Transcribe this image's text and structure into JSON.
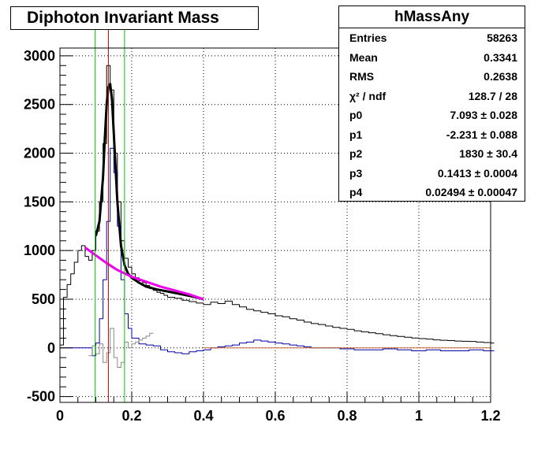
{
  "chart_data": {
    "type": "line",
    "title": "Diphoton Invariant Mass",
    "xlabel": "",
    "ylabel": "",
    "xlim": [
      0,
      1.2
    ],
    "ylim": [
      -560,
      3080
    ],
    "grid": true,
    "x_ticks": [
      0,
      0.2,
      0.4,
      0.6,
      0.8,
      1,
      1.2
    ],
    "x_tick_labels": [
      "0",
      "0.2",
      "0.4",
      "0.6",
      "0.8",
      "1",
      "1.2"
    ],
    "y_ticks": [
      -500,
      0,
      500,
      1000,
      1500,
      2000,
      2500,
      3000
    ],
    "y_tick_labels": [
      "-500",
      "0",
      "500",
      "1000",
      "1500",
      "2000",
      "2500",
      "3000"
    ],
    "vertical_lines": [
      {
        "x": 0.098,
        "color": "#00cc00"
      },
      {
        "x": 0.135,
        "color": "#cc0000"
      },
      {
        "x": 0.18,
        "color": "#00cc00"
      }
    ],
    "series": [
      {
        "color": "#000000",
        "style": "step",
        "x": [
          0.0,
          0.01,
          0.02,
          0.03,
          0.04,
          0.05,
          0.06,
          0.07,
          0.08,
          0.09,
          0.1,
          0.11,
          0.12,
          0.13,
          0.14,
          0.15,
          0.16,
          0.17,
          0.18,
          0.19,
          0.2,
          0.21,
          0.22,
          0.23,
          0.24,
          0.25,
          0.26,
          0.27,
          0.28,
          0.29,
          0.3,
          0.32,
          0.34,
          0.36,
          0.38,
          0.4,
          0.42,
          0.44,
          0.46,
          0.48,
          0.5,
          0.52,
          0.54,
          0.56,
          0.58,
          0.6,
          0.62,
          0.64,
          0.66,
          0.68,
          0.7,
          0.72,
          0.74,
          0.76,
          0.78,
          0.8,
          0.82,
          0.84,
          0.86,
          0.88,
          0.9,
          0.92,
          0.94,
          0.96,
          0.98,
          1.0,
          1.02,
          1.04,
          1.06,
          1.08,
          1.1,
          1.12,
          1.14,
          1.16,
          1.18,
          1.2
        ],
        "values": [
          30,
          520,
          650,
          760,
          880,
          1000,
          1050,
          940,
          900,
          1000,
          1200,
          1500,
          2100,
          2900,
          2650,
          2000,
          1500,
          1100,
          920,
          830,
          760,
          720,
          690,
          670,
          640,
          610,
          590,
          570,
          560,
          540,
          520,
          510,
          490,
          475,
          460,
          445,
          470,
          455,
          480,
          445,
          420,
          395,
          380,
          365,
          350,
          330,
          320,
          300,
          285,
          265,
          250,
          240,
          225,
          210,
          200,
          190,
          175,
          165,
          155,
          145,
          135,
          125,
          118,
          110,
          102,
          95,
          90,
          82,
          78,
          75,
          70,
          68,
          66,
          60,
          55,
          50
        ]
      },
      {
        "color": "#0000aa",
        "style": "step",
        "x": [
          0.0,
          0.02,
          0.04,
          0.06,
          0.08,
          0.09,
          0.1,
          0.11,
          0.12,
          0.13,
          0.14,
          0.15,
          0.16,
          0.17,
          0.18,
          0.19,
          0.2,
          0.22,
          0.24,
          0.26,
          0.28,
          0.3,
          0.32,
          0.34,
          0.36,
          0.38,
          0.4,
          0.42,
          0.44,
          0.46,
          0.48,
          0.5,
          0.52,
          0.54,
          0.56,
          0.58,
          0.6,
          0.62,
          0.64,
          0.66,
          0.68,
          0.7,
          0.74,
          0.78,
          0.82,
          0.86,
          0.9,
          0.94,
          0.98,
          1.02,
          1.06,
          1.1,
          1.14,
          1.18,
          1.2
        ],
        "values": [
          0,
          0,
          0,
          0,
          0,
          -80,
          50,
          300,
          700,
          1300,
          2050,
          1800,
          1250,
          700,
          350,
          200,
          100,
          40,
          30,
          20,
          -20,
          -40,
          -50,
          -60,
          -40,
          -30,
          -20,
          0,
          10,
          20,
          30,
          50,
          60,
          80,
          70,
          60,
          50,
          40,
          30,
          20,
          10,
          0,
          0,
          -10,
          -20,
          -20,
          -10,
          -20,
          -30,
          -20,
          -30,
          -30,
          -20,
          -30,
          -30
        ]
      },
      {
        "color": "#888888",
        "style": "step",
        "x": [
          0.08,
          0.09,
          0.1,
          0.11,
          0.12,
          0.13,
          0.14,
          0.15,
          0.16,
          0.17,
          0.18,
          0.19,
          0.2,
          0.21,
          0.22,
          0.23,
          0.24,
          0.25
        ],
        "values": [
          -80,
          20,
          -60,
          40,
          -150,
          -50,
          200,
          -100,
          -200,
          -150,
          60,
          0,
          40,
          60,
          80,
          100,
          120,
          150
        ]
      },
      {
        "color": "#000000",
        "style": "fit",
        "x": [
          0.1,
          0.11,
          0.12,
          0.125,
          0.13,
          0.135,
          0.14,
          0.145,
          0.15,
          0.155,
          0.16,
          0.17,
          0.18,
          0.19,
          0.2,
          0.22,
          0.24,
          0.27,
          0.3,
          0.34,
          0.38,
          0.4
        ],
        "values": [
          1150,
          1300,
          1750,
          2150,
          2500,
          2680,
          2710,
          2550,
          2200,
          1850,
          1500,
          1050,
          850,
          760,
          720,
          670,
          630,
          600,
          580,
          550,
          520,
          500
        ]
      },
      {
        "color": "#ee00ee",
        "style": "fit",
        "x": [
          0.07,
          0.1,
          0.13,
          0.16,
          0.2,
          0.24,
          0.28,
          0.32,
          0.36,
          0.4
        ],
        "values": [
          1030,
          950,
          870,
          800,
          730,
          680,
          630,
          590,
          550,
          500
        ]
      },
      {
        "color": "#cc6633",
        "style": "line",
        "x": [
          0.4,
          1.2
        ],
        "values": [
          0,
          0
        ]
      }
    ]
  },
  "stats": {
    "title": "hMassAny",
    "rows": [
      {
        "label": "Entries",
        "value": "58263"
      },
      {
        "label": "Mean",
        "value": "0.3341"
      },
      {
        "label": "RMS",
        "value": "0.2638"
      },
      {
        "label": "χ² / ndf",
        "value": "128.7 / 28"
      },
      {
        "label": "p0",
        "value": "7.093  ± 0.028"
      },
      {
        "label": "p1",
        "value": "-2.231  ± 0.088"
      },
      {
        "label": "p2",
        "value": "1830  ± 30.4"
      },
      {
        "label": "p3",
        "value": "0.1413  ± 0.0004"
      },
      {
        "label": "p4",
        "value": "0.02494  ± 0.00047"
      }
    ]
  }
}
